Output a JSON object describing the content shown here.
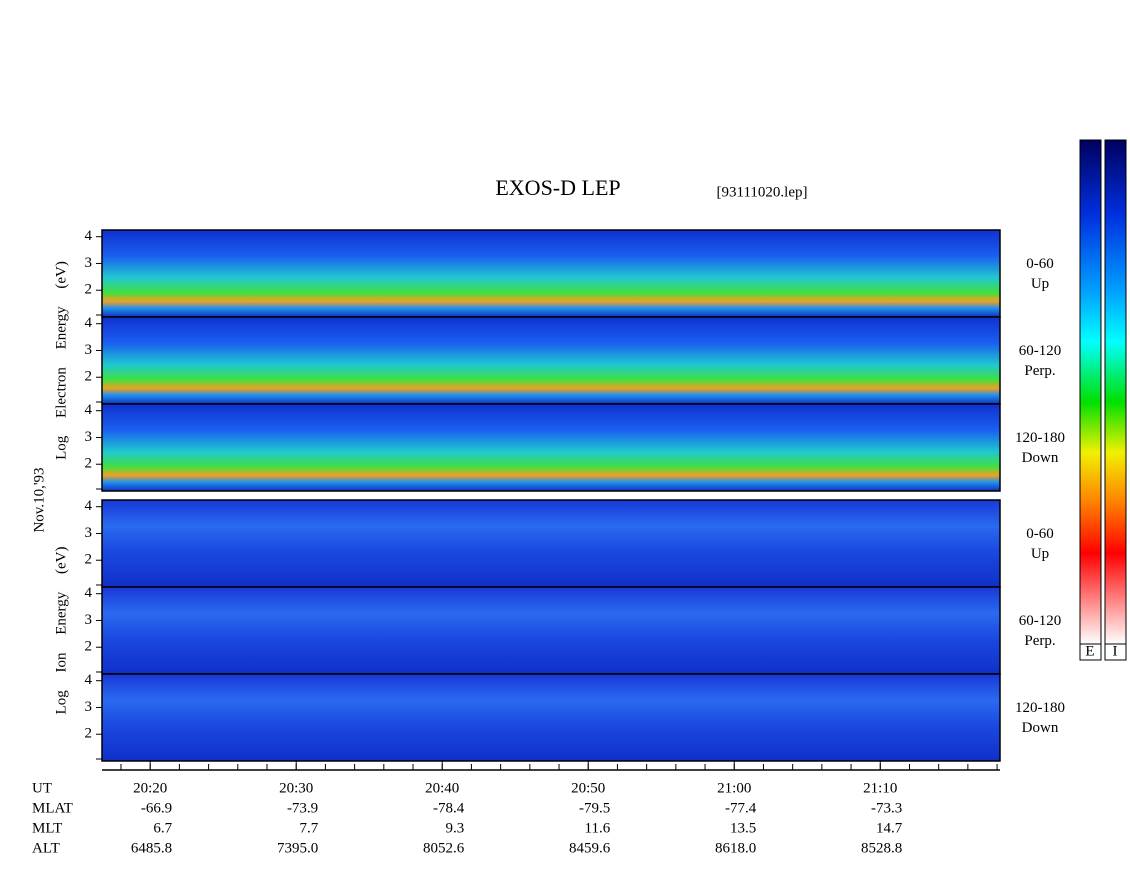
{
  "title": "EXOS-D LEP",
  "file": "[93111020.lep]",
  "date": "Nov.10,'93",
  "groups": [
    {
      "label": "Log Electron Energy (eV)",
      "panels": [
        {
          "angle": "0-60",
          "direction": "Up",
          "ylim": [
            1,
            4.25
          ],
          "yticks": [
            2,
            3,
            4
          ]
        },
        {
          "angle": "60-120",
          "direction": "Perp.",
          "ylim": [
            1,
            4.25
          ],
          "yticks": [
            2,
            3,
            4
          ]
        },
        {
          "angle": "120-180",
          "direction": "Down",
          "ylim": [
            1,
            4.25
          ],
          "yticks": [
            2,
            3,
            4
          ]
        }
      ]
    },
    {
      "label": "Log Ion Energy (eV)",
      "panels": [
        {
          "angle": "0-60",
          "direction": "Up",
          "ylim": [
            1,
            4.25
          ],
          "yticks": [
            2,
            3,
            4
          ]
        },
        {
          "angle": "60-120",
          "direction": "Perp.",
          "ylim": [
            1,
            4.25
          ],
          "yticks": [
            2,
            3,
            4
          ]
        },
        {
          "angle": "120-180",
          "direction": "Down",
          "ylim": [
            1,
            4.25
          ],
          "yticks": [
            2,
            3,
            4
          ]
        }
      ]
    }
  ],
  "time_axis": {
    "name": "UT",
    "xlim": [
      16.7,
      78.2
    ],
    "xticks": [
      {
        "value": 20,
        "label": "20:20"
      },
      {
        "value": 30,
        "label": "20:30"
      },
      {
        "value": 40,
        "label": "20:40"
      },
      {
        "value": 50,
        "label": "20:50"
      },
      {
        "value": 60,
        "label": "21:00"
      },
      {
        "value": 70,
        "label": "21:10"
      }
    ]
  },
  "ephemeris": [
    {
      "name": "MLAT",
      "values": [
        "-66.9",
        "-73.9",
        "-78.4",
        "-79.5",
        "-77.4",
        "-73.3"
      ]
    },
    {
      "name": "MLT",
      "values": [
        "6.7",
        "7.7",
        "9.3",
        "11.6",
        "13.5",
        "14.7"
      ]
    },
    {
      "name": "ALT",
      "values": [
        "6485.8",
        "7395.0",
        "8052.6",
        "8459.6",
        "8618.0",
        "8528.8"
      ]
    }
  ],
  "colorbars": [
    "E",
    "I"
  ]
}
